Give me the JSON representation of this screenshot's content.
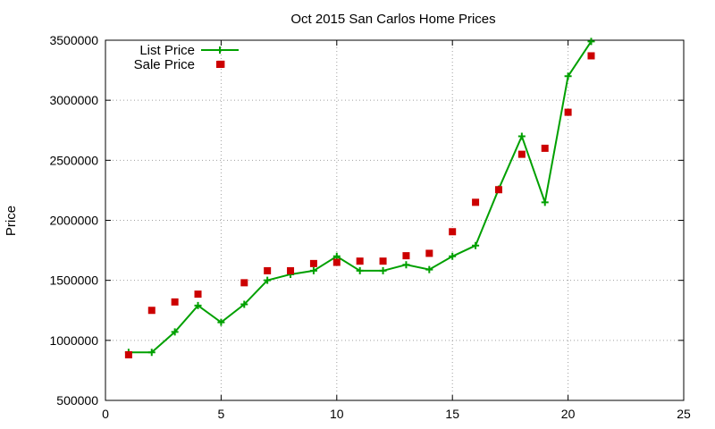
{
  "chart_data": {
    "type": "line",
    "title": "Oct 2015 San Carlos Home Prices",
    "xlabel": "",
    "ylabel": "Price",
    "xlim": [
      0,
      25
    ],
    "ylim": [
      500000,
      3500000
    ],
    "x_ticks": [
      0,
      5,
      10,
      15,
      20,
      25
    ],
    "y_ticks": [
      500000,
      1000000,
      1500000,
      2000000,
      2500000,
      3000000,
      3500000
    ],
    "grid": true,
    "legend_position": "top-left",
    "series": [
      {
        "name": "List Price",
        "style": "line-with-plus-markers",
        "color": "#00a000",
        "x": [
          1,
          2,
          3,
          4,
          5,
          6,
          7,
          8,
          9,
          10,
          11,
          12,
          13,
          14,
          15,
          16,
          17,
          18,
          19,
          20,
          21
        ],
        "values": [
          900000,
          900000,
          1070000,
          1290000,
          1150000,
          1300000,
          1500000,
          1550000,
          1580000,
          1700000,
          1580000,
          1580000,
          1630000,
          1590000,
          1700000,
          1790000,
          2260000,
          2700000,
          2150000,
          3200000,
          3490000
        ]
      },
      {
        "name": "Sale Price",
        "style": "square-points",
        "color": "#cc0000",
        "x": [
          1,
          2,
          3,
          4,
          5,
          6,
          7,
          8,
          9,
          10,
          11,
          12,
          13,
          14,
          15,
          16,
          17,
          18,
          19,
          20,
          21
        ],
        "values": [
          880000,
          1250000,
          1320000,
          1385000,
          3300000,
          1480000,
          1580000,
          1580000,
          1640000,
          1650000,
          1660000,
          1660000,
          1705000,
          1725000,
          1905000,
          2150000,
          2255000,
          2550000,
          2600000,
          2900000,
          3370000
        ]
      }
    ]
  }
}
